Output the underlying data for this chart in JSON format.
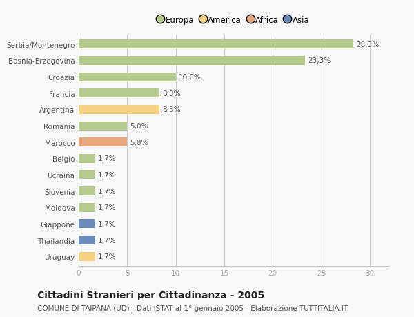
{
  "countries": [
    "Serbia/Montenegro",
    "Bosnia-Erzegovina",
    "Croazia",
    "Francia",
    "Argentina",
    "Romania",
    "Marocco",
    "Belgio",
    "Ucraina",
    "Slovenia",
    "Moldova",
    "Giappone",
    "Thailandia",
    "Uruguay"
  ],
  "values": [
    28.3,
    23.3,
    10.0,
    8.3,
    8.3,
    5.0,
    5.0,
    1.7,
    1.7,
    1.7,
    1.7,
    1.7,
    1.7,
    1.7
  ],
  "labels": [
    "28,3%",
    "23,3%",
    "10,0%",
    "8,3%",
    "8,3%",
    "5,0%",
    "5,0%",
    "1,7%",
    "1,7%",
    "1,7%",
    "1,7%",
    "1,7%",
    "1,7%",
    "1,7%"
  ],
  "categories": [
    "Europa",
    "Europa",
    "Europa",
    "Europa",
    "America",
    "Europa",
    "Africa",
    "Europa",
    "Europa",
    "Europa",
    "Europa",
    "Asia",
    "Asia",
    "America"
  ],
  "colors": {
    "Europa": "#b5cc8e",
    "America": "#f5d080",
    "Africa": "#e8a87c",
    "Asia": "#6b8cba"
  },
  "legend_labels": [
    "Europa",
    "America",
    "Africa",
    "Asia"
  ],
  "legend_colors": [
    "#b5cc8e",
    "#f5d080",
    "#e8a87c",
    "#6b8cba"
  ],
  "title": "Cittadini Stranieri per Cittadinanza - 2005",
  "subtitle": "COMUNE DI TAIPANA (UD) - Dati ISTAT al 1° gennaio 2005 - Elaborazione TUTTITALIA.IT",
  "xlim": [
    0,
    32
  ],
  "xticks": [
    0,
    5,
    10,
    15,
    20,
    25,
    30
  ],
  "background_color": "#f8f8f8",
  "grid_color": "#cccccc",
  "bar_height": 0.55,
  "title_fontsize": 10,
  "subtitle_fontsize": 7.5,
  "label_fontsize": 7.5,
  "tick_fontsize": 7.5,
  "legend_fontsize": 8.5
}
